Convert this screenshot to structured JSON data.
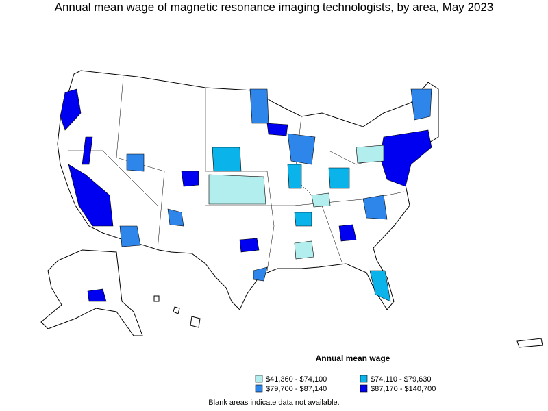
{
  "title": "Annual mean wage of magnetic resonance imaging technologists, by area, May 2023",
  "legend": {
    "title": "Annual mean wage",
    "items": [
      {
        "label": "$41,360 - $74,100",
        "color": "#b3eeee"
      },
      {
        "label": "$74,110 - $79,630",
        "color": "#0ab4ea"
      },
      {
        "label": "$79,700 - $87,140",
        "color": "#2f86ea"
      },
      {
        "label": "$87,170 - $140,700",
        "color": "#0000f0"
      }
    ]
  },
  "footnote": "Blank areas indicate data not available."
}
